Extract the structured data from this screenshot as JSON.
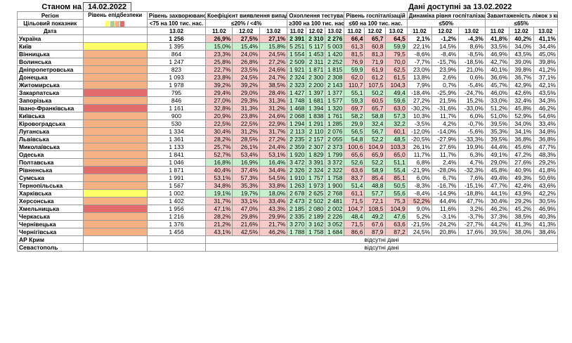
{
  "header": {
    "as_of_label": "Станом на",
    "as_of_date": "14.02.2022",
    "data_available": "Дані доступні за 13.02.2022"
  },
  "columns": {
    "region": "Регіон",
    "target": "Цільовий показник",
    "date": "Дата",
    "epi_level": "Рівень епідбезпеки",
    "incidence": "Рівень захворюваності",
    "incidence_target": "<75 на 100 тис. нас.",
    "incidence_date": "13.02",
    "detection": "Коефіцієнт виявлення випадків інфікування",
    "detection_target": "≤20% / <4%",
    "testing": "Охоплення тестуванням",
    "testing_target": "≥300 на 100 тис. нас.",
    "hosp": "Рівень госпіталізацій",
    "hosp_target": "≤60 на 100 тис. нас.",
    "dynamics": "Динаміка рівня госпіталізацій",
    "dynamics_target": "≤50%",
    "oxygen": "Завантаженість ліжок з киснем",
    "oxygen_target": "≤65%",
    "dates3": [
      "11.02",
      "12.02",
      "13.02"
    ]
  },
  "colors": {
    "yellow": "#ffff66",
    "orange": "#f4b183",
    "red": "#e26b6b",
    "green": "#c6efce",
    "pink": "#f8cbcb",
    "white": "#ffffff",
    "swatches": [
      "#ffff66",
      "#a9d08e",
      "#f4b183",
      "#e26b6b"
    ]
  },
  "rows": [
    {
      "region": "Україна",
      "level": "white",
      "inc": "1 256",
      "det": [
        "26,9%",
        "27,5%",
        "27,1%"
      ],
      "tst": [
        "2 391",
        "2 310",
        "2 276"
      ],
      "hsp": [
        "66,4",
        "65,7",
        "64,5"
      ],
      "dyn": [
        "2,1%",
        "-1,2%",
        "-4,3%"
      ],
      "oxy": [
        "41,8%",
        "40,2%",
        "41,1%"
      ]
    },
    {
      "region": "Київ",
      "level": "yellow",
      "inc": "1 395",
      "det": [
        "15,0%",
        "15,4%",
        "15,8%"
      ],
      "tst": [
        "5 251",
        "5 117",
        "5 003"
      ],
      "hsp": [
        "61,3",
        "60,8",
        "59,9"
      ],
      "dyn": [
        "22,1%",
        "14,5%",
        "8,6%"
      ],
      "oxy": [
        "33,5%",
        "34,0%",
        "34,4%"
      ]
    },
    {
      "region": "Вінницька",
      "level": "orange",
      "inc": "864",
      "det": [
        "23,3%",
        "24,0%",
        "24,5%"
      ],
      "tst": [
        "1 554",
        "1 453",
        "1 420"
      ],
      "hsp": [
        "81,5",
        "81,3",
        "79,5"
      ],
      "dyn": [
        "-8,6%",
        "-8,4%",
        "-8,5%"
      ],
      "oxy": [
        "46,9%",
        "43,5%",
        "45,0%"
      ]
    },
    {
      "region": "Волинська",
      "level": "orange",
      "inc": "1 247",
      "det": [
        "25,8%",
        "26,8%",
        "27,2%"
      ],
      "tst": [
        "2 509",
        "2 311",
        "2 252"
      ],
      "hsp": [
        "76,9",
        "71,9",
        "70,0"
      ],
      "dyn": [
        "-7,7%",
        "-15,7%",
        "-18,5%"
      ],
      "oxy": [
        "42,7%",
        "39,0%",
        "39,8%"
      ]
    },
    {
      "region": "Дніпропетровська",
      "level": "orange",
      "inc": "823",
      "det": [
        "22,7%",
        "23,5%",
        "24,6%"
      ],
      "tst": [
        "1 921",
        "1 871",
        "1 815"
      ],
      "hsp": [
        "59,9",
        "61,9",
        "62,5"
      ],
      "dyn": [
        "23,0%",
        "23,9%",
        "21,0%"
      ],
      "oxy": [
        "40,1%",
        "39,8%",
        "41,2%"
      ]
    },
    {
      "region": "Донецька",
      "level": "orange",
      "inc": "1 093",
      "det": [
        "23,8%",
        "24,5%",
        "24,7%"
      ],
      "tst": [
        "2 324",
        "2 300",
        "2 308"
      ],
      "hsp": [
        "62,0",
        "61,2",
        "61,5"
      ],
      "dyn": [
        "13,8%",
        "2,6%",
        "0,6%"
      ],
      "oxy": [
        "36,6%",
        "36,7%",
        "37,1%"
      ]
    },
    {
      "region": "Житомирська",
      "level": "orange",
      "inc": "1 978",
      "det": [
        "39,2%",
        "39,2%",
        "38,5%"
      ],
      "tst": [
        "2 323",
        "2 200",
        "2 143"
      ],
      "hsp": [
        "110,7",
        "107,5",
        "104,3"
      ],
      "dyn": [
        "7,9%",
        "0,7%",
        "-5,4%"
      ],
      "oxy": [
        "45,7%",
        "42,9%",
        "42,1%"
      ]
    },
    {
      "region": "Закарпатська",
      "level": "red",
      "inc": "795",
      "det": [
        "29,4%",
        "29,0%",
        "28,4%"
      ],
      "tst": [
        "1 427",
        "1 397",
        "1 377"
      ],
      "hsp": [
        "55,1",
        "50,2",
        "49,4"
      ],
      "dyn": [
        "-18,4%",
        "-25,9%",
        "-24,7%"
      ],
      "oxy": [
        "46,0%",
        "42,6%",
        "43,5%"
      ]
    },
    {
      "region": "Запорізька",
      "level": "orange",
      "inc": "846",
      "det": [
        "27,0%",
        "29,3%",
        "31,3%"
      ],
      "tst": [
        "1 748",
        "1 681",
        "1 577"
      ],
      "hsp": [
        "59,3",
        "60,5",
        "59,6"
      ],
      "dyn": [
        "27,2%",
        "21,5%",
        "15,2%"
      ],
      "oxy": [
        "33,0%",
        "32,4%",
        "34,3%"
      ]
    },
    {
      "region": "Івано-Франківська",
      "level": "red",
      "inc": "1 161",
      "det": [
        "32,8%",
        "31,3%",
        "31,2%"
      ],
      "tst": [
        "1 468",
        "1 394",
        "1 320"
      ],
      "hsp": [
        "69,7",
        "65,7",
        "63,0"
      ],
      "dyn": [
        "-30,2%",
        "-31,6%",
        "-33,0%"
      ],
      "oxy": [
        "51,2%",
        "45,8%",
        "46,2%"
      ]
    },
    {
      "region": "Київська",
      "level": "orange",
      "inc": "900",
      "det": [
        "20,9%",
        "23,8%",
        "24,6%"
      ],
      "tst": [
        "2 068",
        "1 838",
        "1 761"
      ],
      "hsp": [
        "58,2",
        "58,8",
        "57,3"
      ],
      "dyn": [
        "10,3%",
        "11,7%",
        "6,0%"
      ],
      "oxy": [
        "51,0%",
        "52,9%",
        "54,6%"
      ]
    },
    {
      "region": "Кіровоградська",
      "level": "orange",
      "inc": "530",
      "det": [
        "22,5%",
        "22,5%",
        "22,9%"
      ],
      "tst": [
        "1 294",
        "1 291",
        "1 285"
      ],
      "hsp": [
        "29,9",
        "32,4",
        "32,2"
      ],
      "dyn": [
        "-3,5%",
        "4,2%",
        "-0,7%"
      ],
      "oxy": [
        "39,5%",
        "34,0%",
        "33,4%"
      ]
    },
    {
      "region": "Луганська",
      "level": "orange",
      "inc": "1 334",
      "det": [
        "30,4%",
        "31,2%",
        "31,7%"
      ],
      "tst": [
        "2 113",
        "2 110",
        "2 076"
      ],
      "hsp": [
        "56,5",
        "56,7",
        "60,1"
      ],
      "dyn": [
        "-12,0%",
        "-14,0%",
        "-5,6%"
      ],
      "oxy": [
        "35,3%",
        "34,1%",
        "34,8%"
      ]
    },
    {
      "region": "Львівська",
      "level": "orange",
      "inc": "1 361",
      "det": [
        "28,2%",
        "28,5%",
        "27,2%"
      ],
      "tst": [
        "2 235",
        "2 157",
        "2 055"
      ],
      "hsp": [
        "54,8",
        "52,2",
        "48,5"
      ],
      "dyn": [
        "-20,5%",
        "-27,9%",
        "-33,3%"
      ],
      "oxy": [
        "39,5%",
        "36,8%",
        "36,8%"
      ]
    },
    {
      "region": "Миколаївська",
      "level": "orange",
      "inc": "1 133",
      "det": [
        "25,7%",
        "26,1%",
        "24,4%"
      ],
      "tst": [
        "2 359",
        "2 307",
        "2 373"
      ],
      "hsp": [
        "100,6",
        "104,9",
        "103,3"
      ],
      "dyn": [
        "26,1%",
        "27,6%",
        "19,9%"
      ],
      "oxy": [
        "44,4%",
        "45,6%",
        "47,7%"
      ]
    },
    {
      "region": "Одеська",
      "level": "orange",
      "inc": "1 841",
      "det": [
        "52,7%",
        "53,4%",
        "53,1%"
      ],
      "tst": [
        "1 920",
        "1 829",
        "1 799"
      ],
      "hsp": [
        "65,6",
        "65,9",
        "65,0"
      ],
      "dyn": [
        "11,7%",
        "11,7%",
        "6,3%"
      ],
      "oxy": [
        "49,1%",
        "47,2%",
        "48,3%"
      ]
    },
    {
      "region": "Полтавська",
      "level": "orange",
      "inc": "1 046",
      "det": [
        "16,8%",
        "16,9%",
        "16,4%"
      ],
      "tst": [
        "3 472",
        "3 391",
        "3 372"
      ],
      "hsp": [
        "52,6",
        "52,2",
        "51,1"
      ],
      "dyn": [
        "6,8%",
        "2,4%",
        "4,7%"
      ],
      "oxy": [
        "29,0%",
        "27,6%",
        "29,2%"
      ]
    },
    {
      "region": "Рівненська",
      "level": "red",
      "inc": "1 871",
      "det": [
        "40,4%",
        "37,4%",
        "34,4%"
      ],
      "tst": [
        "2 326",
        "2 324",
        "2 322"
      ],
      "hsp": [
        "63,6",
        "58,9",
        "55,4"
      ],
      "dyn": [
        "-21,9%",
        "-28,0%",
        "-32,3%"
      ],
      "oxy": [
        "45,8%",
        "40,9%",
        "41,8%"
      ]
    },
    {
      "region": "Сумська",
      "level": "orange",
      "inc": "1 991",
      "det": [
        "53,1%",
        "57,3%",
        "54,5%"
      ],
      "tst": [
        "1 910",
        "1 757",
        "1 758"
      ],
      "hsp": [
        "83,7",
        "85,4",
        "85,1"
      ],
      "dyn": [
        "6,0%",
        "6,7%",
        "7,6%"
      ],
      "oxy": [
        "49,4%",
        "49,3%",
        "50,6%"
      ]
    },
    {
      "region": "Тернопільська",
      "level": "orange",
      "inc": "1 567",
      "det": [
        "34,8%",
        "35,3%",
        "33,8%"
      ],
      "tst": [
        "1 263",
        "1 973",
        "1 900"
      ],
      "hsp": [
        "51,4",
        "48,8",
        "50,5"
      ],
      "dyn": [
        "-8,3%",
        "-16,7%",
        "-15,1%"
      ],
      "oxy": [
        "47,7%",
        "42,4%",
        "43,6%"
      ]
    },
    {
      "region": "Харківська",
      "level": "yellow",
      "inc": "1 002",
      "det": [
        "19,1%",
        "19,7%",
        "18,0%"
      ],
      "tst": [
        "2 678",
        "2 625",
        "2 768"
      ],
      "hsp": [
        "61,1",
        "57,7",
        "55,6"
      ],
      "dyn": [
        "-8,4%",
        "-14,9%",
        "-18,8%"
      ],
      "oxy": [
        "44,1%",
        "43,9%",
        "42,2%"
      ]
    },
    {
      "region": "Херсонська",
      "level": "orange",
      "inc": "1 402",
      "det": [
        "31,7%",
        "33,1%",
        "33,4%"
      ],
      "tst": [
        "2 473",
        "2 502",
        "2 481"
      ],
      "hsp": [
        "71,5",
        "72,1",
        "75,3"
      ],
      "dyn": [
        "52,2%",
        "44,4%",
        "47,7%"
      ],
      "oxy": [
        "30,4%",
        "29,2%",
        "30,5%"
      ]
    },
    {
      "region": "Хмельницька",
      "level": "red",
      "inc": "1 956",
      "det": [
        "47,1%",
        "47,0%",
        "43,3%"
      ],
      "tst": [
        "2 185",
        "2 080",
        "2 002"
      ],
      "hsp": [
        "104,7",
        "108,5",
        "104,9"
      ],
      "dyn": [
        "9,0%",
        "11,6%",
        "3,2%"
      ],
      "oxy": [
        "46,2%",
        "45,2%",
        "46,9%"
      ]
    },
    {
      "region": "Черкаська",
      "level": "orange",
      "inc": "1 216",
      "det": [
        "28,2%",
        "29,8%",
        "29,9%"
      ],
      "tst": [
        "2 335",
        "2 189",
        "2 226"
      ],
      "hsp": [
        "48,4",
        "49,2",
        "47,6"
      ],
      "dyn": [
        "5,2%",
        "-3,1%",
        "-3,7%"
      ],
      "oxy": [
        "37,3%",
        "38,5%",
        "40,3%"
      ]
    },
    {
      "region": "Чернівецька",
      "level": "orange",
      "inc": "1 376",
      "det": [
        "21,2%",
        "21,6%",
        "21,7%"
      ],
      "tst": [
        "3 270",
        "3 162",
        "3 052"
      ],
      "hsp": [
        "71,5",
        "67,6",
        "63,6"
      ],
      "dyn": [
        "-21,5%",
        "-24,2%",
        "-27,7%"
      ],
      "oxy": [
        "44,2%",
        "41,3%",
        "41,3%"
      ]
    },
    {
      "region": "Чернігівська",
      "level": "orange",
      "inc": "1 456",
      "det": [
        "43,1%",
        "42,5%",
        "46,2%"
      ],
      "tst": [
        "1 788",
        "1 758",
        "1 684"
      ],
      "hsp": [
        "86,6",
        "87,9",
        "87,2"
      ],
      "dyn": [
        "24,5%",
        "20,8%",
        "17,6%"
      ],
      "oxy": [
        "39,5%",
        "38,0%",
        "38,4%"
      ]
    }
  ],
  "nodata_rows": [
    {
      "region": "АР Крим",
      "text": "відсутні дані"
    },
    {
      "region": "Севастополь",
      "text": "відсутні дані"
    }
  ]
}
